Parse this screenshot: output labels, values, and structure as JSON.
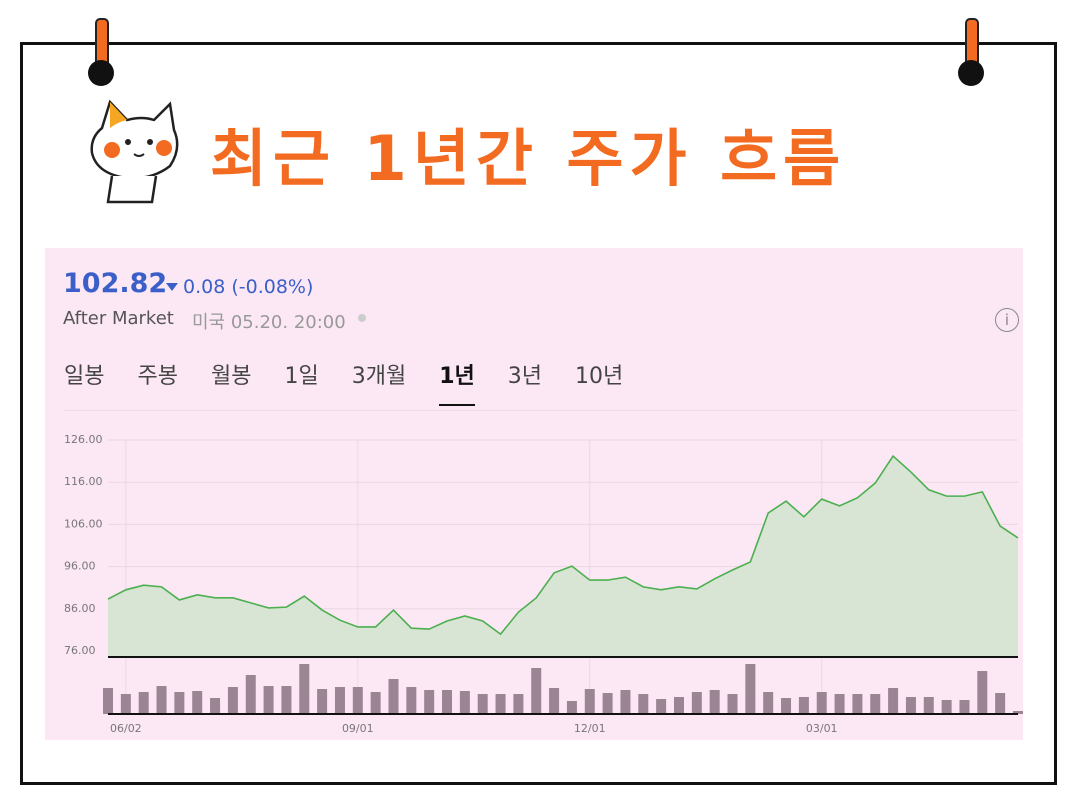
{
  "header": {
    "title": "최근 1년간 주가 흐름"
  },
  "quote": {
    "price": "102.82",
    "change": "0.08 (-0.08%)",
    "session": "After Market",
    "timestamp": "미국 05.20. 20:00"
  },
  "tabs": {
    "items": [
      "일봉",
      "주봉",
      "월봉",
      "1일",
      "3개월",
      "1년",
      "3년",
      "10년"
    ],
    "selected": 5
  },
  "chart_data": {
    "type": "line",
    "categories": [
      null,
      "06/02",
      null,
      null,
      null,
      null,
      null,
      null,
      null,
      null,
      null,
      null,
      null,
      null,
      "09/01",
      null,
      null,
      null,
      null,
      null,
      null,
      null,
      null,
      null,
      null,
      null,
      null,
      "12/01",
      null,
      null,
      null,
      null,
      null,
      null,
      null,
      null,
      null,
      null,
      null,
      null,
      "03/01",
      null,
      null,
      null,
      null,
      null,
      null,
      null,
      null,
      null,
      null,
      null
    ],
    "series": [
      {
        "color": "#4caf50",
        "values": [
          88.3,
          90.5,
          91.6,
          91.2,
          88.1,
          89.3,
          88.6,
          88.6,
          87.4,
          86.2,
          86.4,
          89.0,
          85.7,
          83.3,
          81.7,
          81.7,
          85.7,
          81.4,
          81.2,
          83.1,
          84.3,
          83.1,
          80.0,
          85.2,
          88.6,
          94.5,
          96.1,
          92.8,
          92.8,
          93.5,
          91.2,
          90.5,
          91.2,
          90.7,
          93.1,
          95.2,
          97.1,
          108.7,
          111.5,
          107.8,
          112.0,
          110.4,
          112.3,
          115.8,
          122.2,
          118.4,
          114.2,
          112.7,
          112.7,
          113.7,
          105.6,
          102.8
        ]
      }
    ],
    "volume": {
      "color": "#9b8494",
      "values": [
        26,
        20,
        22,
        28,
        22,
        23,
        16,
        27,
        39,
        28,
        28,
        50,
        25,
        27,
        27,
        22,
        35,
        27,
        24,
        24,
        23,
        20,
        20,
        20,
        46,
        26,
        13,
        25,
        21,
        24,
        20,
        15,
        17,
        22,
        24,
        20,
        50,
        22,
        16,
        17,
        22,
        20,
        20,
        20,
        26,
        17,
        17,
        14,
        14,
        43,
        21,
        3
      ]
    },
    "ylim": [
      76,
      126
    ],
    "yticks": [
      {
        "value": 76,
        "label": "76.00"
      },
      {
        "value": 86,
        "label": "86.00"
      },
      {
        "value": 96,
        "label": "96.00"
      },
      {
        "value": 106,
        "label": "106.00"
      },
      {
        "value": 116,
        "label": "116.00"
      },
      {
        "value": 126,
        "label": "126.00"
      }
    ],
    "grid": true,
    "area_color": "#d9e5d4"
  }
}
